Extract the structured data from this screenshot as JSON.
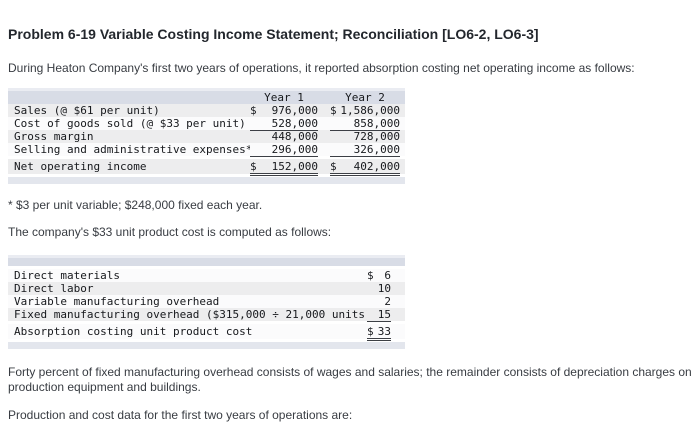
{
  "page": {
    "title": "Problem 6-19 Variable Costing Income Statement; Reconciliation [LO6-2, LO6-3]",
    "intro": "During Heaton Company's first two years of operations, it reported absorption costing net operating income as follows:",
    "footnote": "* $3 per unit variable; $248,000 fixed each year.",
    "unit_cost_intro": "The company's $33 unit product cost is computed as follows:",
    "overhead_paragraph": "Forty percent of fixed manufacturing overhead consists of wages and salaries; the remainder consists of depreciation charges on production equipment and buildings.",
    "production_paragraph": "Production and cost data for the first two years of operations are:"
  },
  "income_table": {
    "columns": [
      "Year 1",
      "Year 2"
    ],
    "rows": [
      {
        "label": "Sales (@ $61 per unit)",
        "y1_cur": "$",
        "y1": "976,000",
        "y2_cur": "$",
        "y2": "1,586,000"
      },
      {
        "label": "Cost of goods sold (@ $33 per unit)",
        "y1": "528,000",
        "y2": "858,000"
      },
      {
        "label": "Gross margin",
        "y1": "448,000",
        "y2": "728,000"
      },
      {
        "label": "Selling and administrative expenses*",
        "y1": "296,000",
        "y2": "326,000"
      }
    ],
    "total_row": {
      "label": "Net operating income",
      "y1_cur": "$",
      "y1": "152,000",
      "y2_cur": "$",
      "y2": "402,000"
    }
  },
  "unit_cost_table": {
    "rows": [
      {
        "label": "Direct materials",
        "cur": "$",
        "value": "6"
      },
      {
        "label": "Direct labor",
        "value": "10"
      },
      {
        "label": "Variable manufacturing overhead",
        "value": "2"
      },
      {
        "label": "Fixed manufacturing overhead ($315,000 ÷ 21,000 units)",
        "value": "15"
      }
    ],
    "total_row": {
      "label": "Absorption costing unit product cost",
      "cur": "$",
      "value": "33"
    }
  },
  "colors": {
    "table_header_bg": "#d8dce6",
    "table_footer_bg": "#e3e6ed",
    "row_stripe": "#ededee",
    "rule_color": "#3c3f45"
  }
}
